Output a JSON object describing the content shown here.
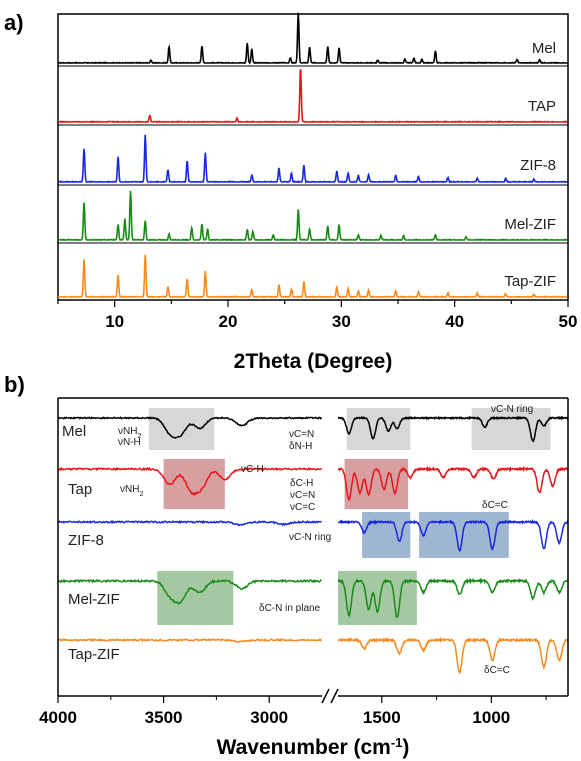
{
  "chart_data": [
    {
      "panel": "a)",
      "type": "line",
      "xlabel": "2Theta (Degree)",
      "xlim": [
        5,
        50
      ],
      "xticks": [
        10,
        20,
        30,
        40,
        50
      ],
      "series": [
        {
          "name": "Mel",
          "color": "#000000",
          "peaks": [
            [
              13.2,
              0.05
            ],
            [
              14.8,
              0.33
            ],
            [
              17.7,
              0.35
            ],
            [
              21.7,
              0.4
            ],
            [
              22.1,
              0.28
            ],
            [
              25.5,
              0.1
            ],
            [
              26.2,
              1.0
            ],
            [
              27.2,
              0.32
            ],
            [
              28.8,
              0.33
            ],
            [
              29.8,
              0.3
            ],
            [
              33.2,
              0.06
            ],
            [
              35.6,
              0.08
            ],
            [
              36.4,
              0.1
            ],
            [
              37.1,
              0.08
            ],
            [
              38.3,
              0.25
            ],
            [
              45.5,
              0.07
            ],
            [
              47.5,
              0.07
            ]
          ]
        },
        {
          "name": "TAP",
          "color": "#e8141b",
          "peaks": [
            [
              13.1,
              0.12
            ],
            [
              20.8,
              0.07
            ],
            [
              26.4,
              1.0
            ]
          ]
        },
        {
          "name": "ZIF-8",
          "color": "#1a27e0",
          "peaks": [
            [
              7.3,
              0.6
            ],
            [
              10.3,
              0.45
            ],
            [
              12.7,
              0.85
            ],
            [
              14.7,
              0.22
            ],
            [
              16.4,
              0.38
            ],
            [
              18.0,
              0.52
            ],
            [
              22.1,
              0.13
            ],
            [
              24.5,
              0.25
            ],
            [
              25.6,
              0.16
            ],
            [
              26.7,
              0.3
            ],
            [
              29.6,
              0.2
            ],
            [
              30.6,
              0.16
            ],
            [
              31.5,
              0.12
            ],
            [
              32.4,
              0.13
            ],
            [
              34.8,
              0.12
            ],
            [
              36.8,
              0.1
            ],
            [
              39.4,
              0.08
            ],
            [
              42.0,
              0.06
            ],
            [
              44.5,
              0.06
            ],
            [
              47.0,
              0.05
            ]
          ]
        },
        {
          "name": "Mel-ZIF",
          "color": "#1a8a17",
          "peaks": [
            [
              7.3,
              0.68
            ],
            [
              10.3,
              0.28
            ],
            [
              10.9,
              0.38
            ],
            [
              11.4,
              0.88
            ],
            [
              12.7,
              0.35
            ],
            [
              14.8,
              0.1
            ],
            [
              16.8,
              0.22
            ],
            [
              17.7,
              0.28
            ],
            [
              18.2,
              0.2
            ],
            [
              21.7,
              0.2
            ],
            [
              22.2,
              0.16
            ],
            [
              24.0,
              0.1
            ],
            [
              26.2,
              0.55
            ],
            [
              27.2,
              0.2
            ],
            [
              28.8,
              0.26
            ],
            [
              29.8,
              0.28
            ],
            [
              31.5,
              0.1
            ],
            [
              33.5,
              0.08
            ],
            [
              35.5,
              0.08
            ],
            [
              38.3,
              0.1
            ],
            [
              41.0,
              0.05
            ]
          ]
        },
        {
          "name": "Tap-ZIF",
          "color": "#f58a1f",
          "peaks": [
            [
              7.3,
              0.72
            ],
            [
              10.3,
              0.43
            ],
            [
              12.7,
              0.82
            ],
            [
              14.7,
              0.2
            ],
            [
              16.4,
              0.35
            ],
            [
              18.0,
              0.5
            ],
            [
              22.1,
              0.14
            ],
            [
              24.5,
              0.24
            ],
            [
              25.6,
              0.16
            ],
            [
              26.7,
              0.3
            ],
            [
              29.6,
              0.2
            ],
            [
              30.6,
              0.16
            ],
            [
              31.5,
              0.12
            ],
            [
              32.4,
              0.13
            ],
            [
              34.8,
              0.12
            ],
            [
              36.8,
              0.1
            ],
            [
              39.4,
              0.08
            ],
            [
              42.0,
              0.07
            ],
            [
              44.5,
              0.06
            ],
            [
              47.0,
              0.05
            ]
          ]
        }
      ]
    },
    {
      "panel": "b)",
      "type": "line",
      "xlabel_main": "Wavenumber (cm",
      "xlabel_sup": "-1",
      "xlabel_close": ")",
      "xlim_left": [
        4000,
        2750
      ],
      "xlim_right": [
        1700,
        650
      ],
      "xticks": [
        "4000",
        "3500",
        "3000",
        "1500",
        "1000"
      ],
      "xtick_values": [
        4000,
        3500,
        3000,
        1500,
        1000
      ],
      "series": [
        {
          "name": "Mel",
          "color": "#000000",
          "peaks_left": [
            [
              3470,
              0.55
            ],
            [
              3420,
              0.6
            ],
            [
              3330,
              0.4
            ],
            [
              3130,
              0.3
            ]
          ],
          "peaks_right": [
            [
              1650,
              0.6
            ],
            [
              1540,
              0.8
            ],
            [
              1470,
              0.5
            ],
            [
              1430,
              0.4
            ],
            [
              1030,
              0.35
            ],
            [
              810,
              0.9
            ],
            [
              760,
              0.3
            ]
          ]
        },
        {
          "name": "Tap",
          "color": "#e8141b",
          "peaks_left": [
            [
              3470,
              0.45
            ],
            [
              3370,
              0.6
            ],
            [
              3320,
              0.5
            ],
            [
              3210,
              0.3
            ]
          ],
          "peaks_right": [
            [
              1650,
              0.9
            ],
            [
              1600,
              0.7
            ],
            [
              1560,
              0.75
            ],
            [
              1490,
              0.6
            ],
            [
              1440,
              0.7
            ],
            [
              1370,
              0.25
            ],
            [
              1220,
              0.25
            ],
            [
              1080,
              0.25
            ],
            [
              990,
              0.3
            ],
            [
              780,
              0.7
            ],
            [
              720,
              0.5
            ]
          ]
        },
        {
          "name": "ZIF-8",
          "color": "#1a27e0",
          "peaks_left": [
            [
              3135,
              0.1
            ],
            [
              2930,
              0.08
            ]
          ],
          "peaks_right": [
            [
              1580,
              0.35
            ],
            [
              1420,
              0.65
            ],
            [
              1310,
              0.45
            ],
            [
              1145,
              0.95
            ],
            [
              995,
              0.9
            ],
            [
              760,
              0.9
            ],
            [
              690,
              0.7
            ]
          ]
        },
        {
          "name": "Mel-ZIF",
          "color": "#1a8a17",
          "peaks_left": [
            [
              3470,
              0.35
            ],
            [
              3420,
              0.5
            ],
            [
              3330,
              0.3
            ],
            [
              3130,
              0.2
            ]
          ],
          "peaks_right": [
            [
              1650,
              0.9
            ],
            [
              1560,
              0.75
            ],
            [
              1520,
              0.8
            ],
            [
              1430,
              0.95
            ],
            [
              1310,
              0.3
            ],
            [
              1145,
              0.35
            ],
            [
              995,
              0.3
            ],
            [
              810,
              0.45
            ],
            [
              760,
              0.3
            ],
            [
              690,
              0.3
            ]
          ]
        },
        {
          "name": "Tap-ZIF",
          "color": "#f58a1f",
          "peaks_left": [
            [
              3135,
              0.05
            ]
          ],
          "peaks_right": [
            [
              1580,
              0.25
            ],
            [
              1420,
              0.4
            ],
            [
              1310,
              0.3
            ],
            [
              1145,
              0.95
            ],
            [
              995,
              0.6
            ],
            [
              760,
              0.8
            ],
            [
              690,
              0.6
            ]
          ]
        }
      ],
      "highlights": [
        {
          "series": "Mel",
          "from": 3570,
          "to": 3260,
          "color": "#c9c9c9",
          "side": "left"
        },
        {
          "series": "Mel",
          "from": 1660,
          "to": 1370,
          "color": "#c9c9c9",
          "side": "right"
        },
        {
          "series": "Mel",
          "from": 1090,
          "to": 730,
          "color": "#c9c9c9",
          "side": "right"
        },
        {
          "series": "Tap",
          "from": 3500,
          "to": 3210,
          "color": "#c97f7f",
          "side": "left"
        },
        {
          "series": "Tap",
          "from": 1670,
          "to": 1380,
          "color": "#c97f7f",
          "side": "right"
        },
        {
          "series": "ZIF-8",
          "from": 1590,
          "to": 1370,
          "color": "#7f9ec4",
          "side": "right"
        },
        {
          "series": "ZIF-8",
          "from": 1330,
          "to": 920,
          "color": "#7f9ec4",
          "side": "right"
        },
        {
          "series": "Mel-ZIF",
          "from": 3530,
          "to": 3170,
          "color": "#86b783",
          "side": "left"
        },
        {
          "series": "Mel-ZIF",
          "from": 1700,
          "to": 1340,
          "color": "#86b783",
          "side": "right"
        }
      ],
      "annotations": {
        "mel_nh2": "νNH",
        "mel_nh": "νN-H",
        "mel_cn": "νC=N",
        "mel_dnh": "δN-H",
        "mel_ring": "νC-N ring",
        "tap_nh2": "νNH",
        "tap_ch": "νC-H",
        "tap_dch": "δC-H",
        "tap_cn": "νC=N",
        "tap_cc": "νC=C",
        "tap_dcc": "δC=C",
        "zif_ring": "νC-N ring",
        "melzif_plane": "δC-N in plane",
        "tapzif_dcc": "δC=C",
        "sub2": "2"
      }
    }
  ]
}
